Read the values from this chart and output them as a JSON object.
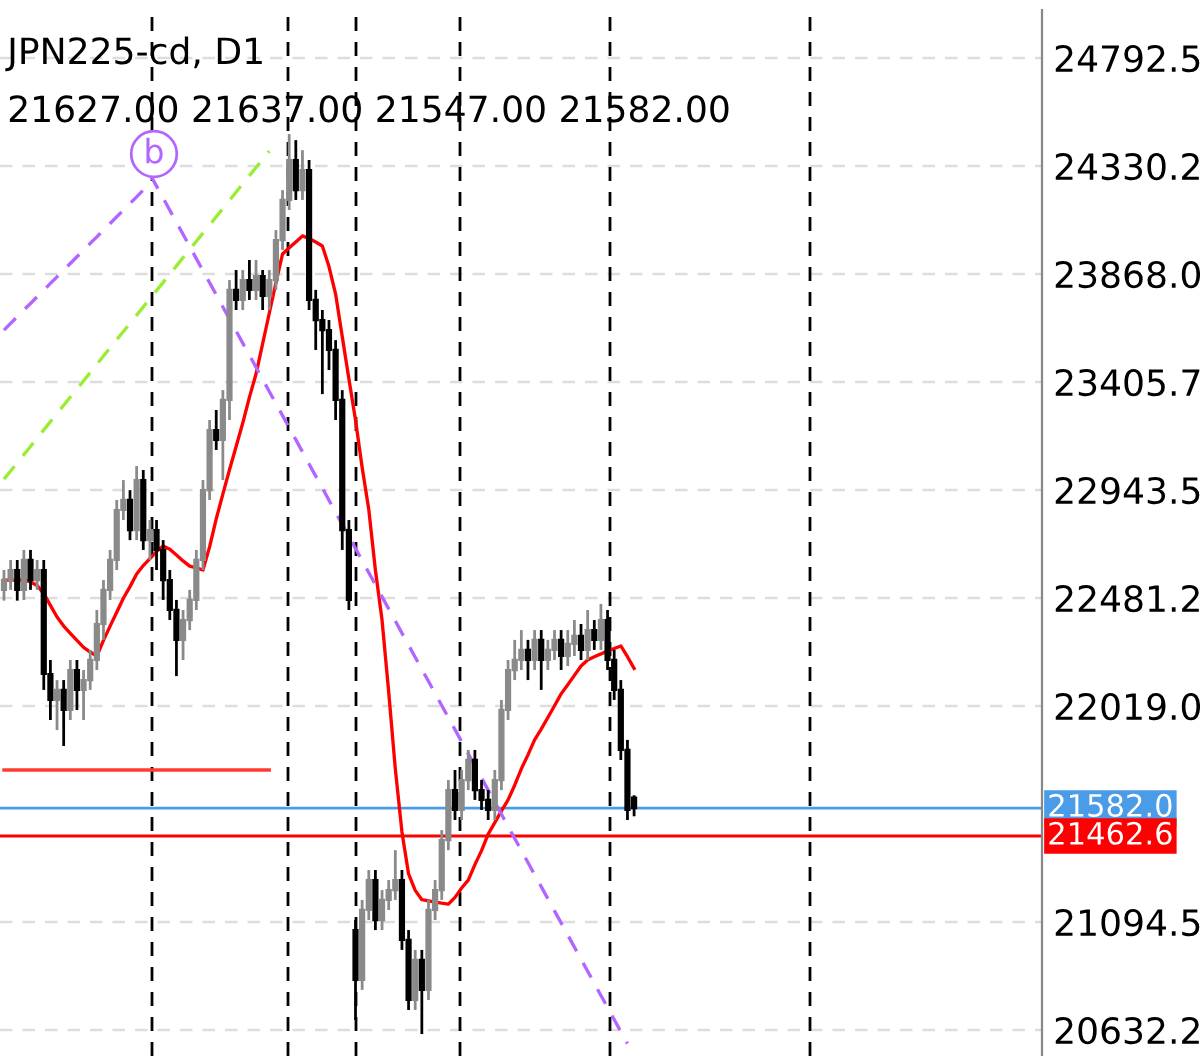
{
  "chart_data": {
    "type": "candlestick",
    "title": "JPN225-cd, D1",
    "subtitle": "21627.00 21637.00 21547.00 21582.00",
    "categories": [
      null,
      null,
      null,
      null,
      null,
      null,
      null,
      null,
      null,
      null,
      null,
      null,
      null,
      null,
      null,
      null,
      null,
      null,
      null,
      null,
      null,
      null,
      null,
      null,
      null,
      null,
      null,
      null,
      null,
      null,
      null,
      null,
      null,
      null,
      null,
      null,
      null,
      null,
      null,
      null,
      null,
      null,
      null,
      null,
      null,
      null,
      null,
      null,
      null,
      null,
      null,
      null,
      null,
      null,
      null,
      null,
      null,
      null,
      null,
      null,
      null,
      null,
      null,
      null,
      null,
      null,
      null,
      null,
      null,
      null,
      null,
      null,
      null,
      null,
      null,
      null,
      null,
      null,
      null,
      null,
      null,
      null,
      null,
      null,
      null,
      null,
      null,
      null,
      null,
      null,
      null,
      null,
      null,
      null,
      null,
      null,
      null,
      null,
      null,
      null,
      null,
      null,
      null,
      null,
      null,
      null,
      null,
      null,
      null,
      null,
      null,
      null,
      null,
      null,
      null,
      null,
      null,
      null,
      null,
      null,
      null,
      null,
      null,
      null,
      null,
      null,
      null,
      null,
      null,
      null,
      null,
      null,
      null,
      null,
      null,
      null,
      null,
      null,
      null,
      null,
      null,
      null,
      null,
      null,
      null,
      null,
      null,
      null,
      null,
      null,
      null,
      null,
      null,
      null,
      null,
      null,
      null
    ],
    "ohlc": [
      [
        22516,
        22601,
        22470,
        22558
      ],
      [
        22558,
        22644,
        22516,
        22601
      ],
      [
        22601,
        22644,
        22470,
        22516
      ],
      [
        22516,
        22687,
        22473,
        22644
      ],
      [
        22644,
        22687,
        22516,
        22558
      ],
      [
        22558,
        22644,
        22516,
        22601
      ],
      [
        22601,
        22644,
        22088,
        22156
      ],
      [
        22156,
        22216,
        21959,
        22045
      ],
      [
        22045,
        22130,
        21916,
        22088
      ],
      [
        22088,
        22130,
        21848,
        22002
      ],
      [
        22002,
        22216,
        21959,
        22173
      ],
      [
        22173,
        22216,
        22002,
        22088
      ],
      [
        22088,
        22173,
        21959,
        22130
      ],
      [
        22130,
        22259,
        22088,
        22216
      ],
      [
        22216,
        22430,
        22173,
        22370
      ],
      [
        22370,
        22558,
        22302,
        22516
      ],
      [
        22516,
        22687,
        22473,
        22644
      ],
      [
        22644,
        22901,
        22601,
        22858
      ],
      [
        22858,
        22986,
        22815,
        22901
      ],
      [
        22901,
        22943,
        22729,
        22772
      ],
      [
        22772,
        23046,
        22729,
        22986
      ],
      [
        22986,
        23029,
        22687,
        22729
      ],
      [
        22729,
        22815,
        22644,
        22772
      ],
      [
        22772,
        22815,
        22601,
        22687
      ],
      [
        22687,
        22729,
        22473,
        22558
      ],
      [
        22558,
        22601,
        22387,
        22430
      ],
      [
        22430,
        22473,
        22147,
        22302
      ],
      [
        22302,
        22430,
        22216,
        22387
      ],
      [
        22387,
        22516,
        22344,
        22473
      ],
      [
        22473,
        22687,
        22430,
        22644
      ],
      [
        22644,
        22986,
        22601,
        22943
      ],
      [
        22943,
        23243,
        22901,
        23200
      ],
      [
        23200,
        23286,
        23115,
        23158
      ],
      [
        23158,
        23371,
        22986,
        23329
      ],
      [
        23329,
        23842,
        23243,
        23800
      ],
      [
        23800,
        23885,
        23714,
        23757
      ],
      [
        23757,
        23885,
        23714,
        23842
      ],
      [
        23842,
        23928,
        23757,
        23800
      ],
      [
        23800,
        23928,
        23757,
        23859
      ],
      [
        23859,
        23885,
        23714,
        23774
      ],
      [
        23774,
        23885,
        23714,
        23842
      ],
      [
        23842,
        24056,
        23800,
        24013
      ],
      [
        24013,
        24227,
        23971,
        24185
      ],
      [
        24185,
        24467,
        24142,
        24356
      ],
      [
        24356,
        24441,
        24185,
        24227
      ],
      [
        24227,
        24398,
        24185,
        24313
      ],
      [
        24313,
        24356,
        23714,
        23757
      ],
      [
        23757,
        23800,
        23543,
        23671
      ],
      [
        23671,
        23714,
        23354,
        23628
      ],
      [
        23628,
        23671,
        23457,
        23543
      ],
      [
        23543,
        23585,
        23243,
        23329
      ],
      [
        23329,
        23371,
        22687,
        22772
      ],
      [
        22772,
        22815,
        22430,
        22473
      ],
      [
        21060,
        21103,
        20675,
        20847
      ],
      [
        20847,
        21189,
        20804,
        21146
      ],
      [
        21146,
        21317,
        21103,
        21274
      ],
      [
        21274,
        21317,
        21060,
        21103
      ],
      [
        21103,
        21231,
        21060,
        21189
      ],
      [
        21189,
        21274,
        21146,
        21231
      ],
      [
        21231,
        21402,
        21189,
        21274
      ],
      [
        21274,
        21317,
        20975,
        21018
      ],
      [
        21018,
        21060,
        20718,
        20761
      ],
      [
        20761,
        20975,
        20718,
        20932
      ],
      [
        20932,
        20975,
        20615,
        20804
      ],
      [
        20804,
        21189,
        20761,
        21146
      ],
      [
        21146,
        21274,
        21103,
        21231
      ],
      [
        21231,
        21488,
        21189,
        21445
      ],
      [
        21445,
        21702,
        21402,
        21659
      ],
      [
        21659,
        21745,
        21531,
        21574
      ],
      [
        21574,
        21745,
        21531,
        21702
      ],
      [
        21702,
        21831,
        21659,
        21788
      ],
      [
        21788,
        21831,
        21617,
        21659
      ],
      [
        21659,
        21702,
        21574,
        21617
      ],
      [
        21617,
        21659,
        21531,
        21574
      ],
      [
        21574,
        21745,
        21531,
        21702
      ],
      [
        21702,
        22045,
        21659,
        22002
      ],
      [
        22002,
        22216,
        21959,
        22173
      ],
      [
        22173,
        22302,
        22130,
        22216
      ],
      [
        22216,
        22344,
        22173,
        22259
      ],
      [
        22259,
        22302,
        22130,
        22216
      ],
      [
        22216,
        22344,
        22173,
        22302
      ],
      [
        22302,
        22344,
        22088,
        22216
      ],
      [
        22216,
        22302,
        22173,
        22259
      ],
      [
        22259,
        22344,
        22216,
        22302
      ],
      [
        22302,
        22344,
        22173,
        22233
      ],
      [
        22233,
        22344,
        22190,
        22285
      ],
      [
        22285,
        22387,
        22233,
        22319
      ],
      [
        22319,
        22370,
        22216,
        22259
      ],
      [
        22259,
        22430,
        22216,
        22344
      ],
      [
        22344,
        22387,
        22259,
        22302
      ],
      [
        22302,
        22456,
        22259,
        22387
      ],
      [
        22387,
        22430,
        22173,
        22216
      ],
      [
        22216,
        22259,
        22045,
        22088
      ],
      [
        22088,
        22130,
        21788,
        21831
      ],
      [
        21831,
        21874,
        21531,
        21574
      ],
      [
        21627,
        21637,
        21547,
        21582
      ],
      null,
      null,
      null,
      null,
      null,
      null,
      null,
      null,
      null,
      null,
      null,
      null,
      null,
      null,
      null,
      null,
      null,
      null,
      null,
      null,
      null,
      null,
      null,
      null,
      null,
      null,
      null,
      null,
      null,
      null,
      null,
      null,
      null,
      null,
      null,
      null,
      null,
      null,
      null,
      null,
      null,
      null,
      null,
      null,
      null,
      null,
      null,
      null,
      null,
      null,
      null,
      null,
      null,
      null,
      null,
      null,
      null,
      null,
      null,
      null,
      null
    ],
    "series": [
      {
        "type": "line",
        "color": "#ff0000",
        "line_style": "solid",
        "values": [
          22558,
          22558,
          22558,
          22558,
          22550,
          22535,
          22500,
          22450,
          22400,
          22361,
          22330,
          22300,
          22270,
          22250,
          22233,
          22300,
          22361,
          22420,
          22480,
          22530,
          22584,
          22620,
          22650,
          22680,
          22704,
          22690,
          22665,
          22640,
          22618,
          22610,
          22601,
          22700,
          22820,
          22926,
          23030,
          23130,
          23230,
          23340,
          23440,
          23570,
          23700,
          23830,
          23954,
          23980,
          24005,
          24031,
          24020,
          24005,
          23988,
          23900,
          23782,
          23600,
          23420,
          23243,
          23040,
          22860,
          22600,
          22387,
          22080,
          21750,
          21480,
          21300,
          21230,
          21190,
          21185,
          21180,
          21175,
          21171,
          21200,
          21240,
          21274,
          21340,
          21400,
          21471,
          21520,
          21570,
          21617,
          21680,
          21750,
          21810,
          21874,
          21920,
          21970,
          22020,
          22071,
          22110,
          22150,
          22190,
          22216,
          22230,
          22242,
          22255,
          22265,
          22276,
          22230,
          22180,
          null,
          null,
          null,
          null,
          null,
          null,
          null,
          null,
          null,
          null,
          null,
          null,
          null,
          null,
          null,
          null,
          null,
          null,
          null,
          null,
          null,
          null,
          null,
          null,
          null,
          null,
          null,
          null,
          null,
          null,
          null,
          null,
          null,
          null,
          null,
          null,
          null,
          null,
          null,
          null,
          null,
          null,
          null,
          null,
          null,
          null,
          null,
          null,
          null,
          null,
          null,
          null,
          null,
          null,
          null,
          null,
          null,
          null,
          null,
          null,
          null
        ]
      },
      {
        "type": "line",
        "color": "#ff3b30",
        "line_style": "solid",
        "values": [
          21745,
          21745,
          21745,
          21745,
          21745,
          21745,
          21745,
          21745,
          21745,
          21745,
          21745,
          21745,
          21745,
          21745,
          21745,
          21745,
          21745,
          21745,
          21745,
          21745,
          21745,
          21745,
          21745,
          21745,
          21745,
          21745,
          21745,
          21745,
          21745,
          21745,
          21745,
          21745,
          21745,
          21745,
          21745,
          21745,
          21745,
          21745,
          21745,
          21745,
          21745,
          null,
          null,
          null,
          null,
          null,
          null,
          null,
          null,
          null,
          null,
          null,
          null,
          null,
          null,
          null,
          null,
          null,
          null,
          null,
          null,
          null,
          null,
          null,
          null,
          null,
          null,
          null,
          null,
          null,
          null,
          null,
          null,
          null,
          null,
          null,
          null,
          null,
          null,
          null,
          null,
          null,
          null,
          null,
          null,
          null,
          null,
          null,
          null,
          null,
          null,
          null,
          null,
          null,
          null,
          null,
          null,
          null,
          null,
          null,
          null,
          null,
          null,
          null,
          null,
          null,
          null,
          null,
          null,
          null,
          null,
          null,
          null,
          null,
          null,
          null,
          null,
          null,
          null,
          null,
          null,
          null,
          null,
          null,
          null,
          null,
          null,
          null,
          null,
          null,
          null,
          null,
          null,
          null,
          null,
          null,
          null,
          null,
          null,
          null,
          null,
          null,
          null,
          null,
          null,
          null,
          null,
          null,
          null,
          null,
          null,
          null,
          null,
          null,
          null,
          null,
          null
        ]
      },
      {
        "type": "line",
        "color": "#b266ff",
        "line_style": "dashed",
        "values": [
          23628,
          23657,
          23685,
          23714,
          23742,
          23771,
          23799,
          23828,
          23856,
          23885,
          23913,
          23942,
          23970,
          23999,
          24027,
          24056,
          24084,
          24113,
          24141,
          24170,
          24198,
          24227,
          24255,
          null,
          null,
          null,
          null,
          null,
          null,
          null,
          null,
          null,
          null,
          null,
          null,
          null,
          null,
          null,
          null,
          null,
          null,
          null,
          null,
          null,
          null,
          null,
          null,
          null,
          null,
          null,
          null,
          null,
          null,
          null,
          null,
          null,
          null,
          null,
          null,
          null,
          null,
          null,
          null,
          null,
          null,
          null,
          null,
          null,
          null,
          null,
          null,
          null,
          null,
          null,
          null,
          null,
          null,
          null,
          null,
          null,
          null,
          null,
          null,
          null,
          null,
          null,
          null,
          null,
          null,
          null,
          null,
          null,
          null,
          null,
          null,
          null,
          null,
          null,
          null,
          null,
          null,
          null,
          null,
          null,
          null,
          null,
          null,
          null,
          null,
          null,
          null,
          null,
          null,
          null,
          null,
          null,
          null,
          null,
          null,
          null,
          null,
          null,
          null,
          null,
          null,
          null,
          null,
          null,
          null,
          null,
          null,
          null,
          null,
          null,
          null,
          null,
          null,
          null,
          null,
          null,
          null,
          null,
          null,
          null,
          null,
          null,
          null,
          null,
          null,
          null,
          null,
          null,
          null,
          null,
          null,
          null,
          null
        ]
      },
      {
        "type": "line",
        "color": "#b266ff",
        "line_style": "dashed",
        "values": [
          null,
          null,
          null,
          null,
          null,
          null,
          null,
          null,
          null,
          null,
          null,
          null,
          null,
          null,
          null,
          null,
          null,
          null,
          null,
          null,
          null,
          null,
          24296,
          24244,
          24193,
          24141,
          24089,
          24038,
          23986,
          23934,
          23882,
          23831,
          23779,
          23727,
          23676,
          23624,
          23572,
          23521,
          23469,
          23417,
          23365,
          23314,
          23262,
          23210,
          23159,
          23107,
          23055,
          23003,
          22952,
          22900,
          22848,
          22797,
          22745,
          22693,
          22642,
          22590,
          22538,
          22486,
          22435,
          22383,
          22331,
          22280,
          22228,
          22176,
          22125,
          22073,
          22021,
          21969,
          21918,
          21866,
          21814,
          21763,
          21711,
          21659,
          21608,
          21556,
          21504,
          21452,
          21401,
          21349,
          21297,
          21246,
          21194,
          21142,
          21091,
          21039,
          20987,
          20935,
          20884,
          20832,
          20780,
          20729,
          20677,
          20625,
          20574,
          null,
          null,
          null,
          null,
          null,
          null,
          null,
          null,
          null,
          null,
          null,
          null,
          null,
          null,
          null,
          null,
          null,
          null,
          null,
          null,
          null,
          null,
          null,
          null,
          null,
          null,
          null,
          null,
          null,
          null,
          null,
          null,
          null,
          null,
          null,
          null,
          null,
          null,
          null,
          null,
          null,
          null,
          null,
          null,
          null,
          null,
          null,
          null,
          null,
          null,
          null,
          null,
          null,
          null,
          null,
          null,
          null,
          null,
          null,
          null,
          null,
          null
        ]
      },
      {
        "type": "line",
        "color": "#99ee33",
        "line_style": "dashed",
        "values": [
          22990,
          23025,
          23060,
          23095,
          23130,
          23166,
          23201,
          23236,
          23271,
          23306,
          23341,
          23376,
          23411,
          23446,
          23481,
          23517,
          23552,
          23587,
          23622,
          23657,
          23692,
          23727,
          23762,
          23797,
          23832,
          23868,
          23903,
          23938,
          23973,
          24008,
          24043,
          24078,
          24113,
          24148,
          24183,
          24219,
          24254,
          24289,
          24324,
          24359,
          24394,
          null,
          null,
          null,
          null,
          null,
          null,
          null,
          null,
          null,
          null,
          null,
          null,
          null,
          null,
          null,
          null,
          null,
          null,
          null,
          null,
          null,
          null,
          null,
          null,
          null,
          null,
          null,
          null,
          null,
          null,
          null,
          null,
          null,
          null,
          null,
          null,
          null,
          null,
          null,
          null,
          null,
          null,
          null,
          null,
          null,
          null,
          null,
          null,
          null,
          null,
          null,
          null,
          null,
          null,
          null,
          null,
          null,
          null,
          null,
          null,
          null,
          null,
          null,
          null,
          null,
          null,
          null,
          null,
          null,
          null,
          null,
          null,
          null,
          null,
          null,
          null,
          null,
          null,
          null,
          null,
          null,
          null,
          null,
          null,
          null,
          null,
          null,
          null,
          null,
          null,
          null,
          null,
          null,
          null,
          null,
          null,
          null,
          null,
          null,
          null,
          null,
          null,
          null,
          null,
          null,
          null,
          null,
          null,
          null,
          null,
          null,
          null,
          null,
          null,
          null,
          null
        ]
      }
    ],
    "ylim": [
      20521,
      24998
    ],
    "yticks": [
      {
        "value": 24792.5,
        "label": "24792.5"
      },
      {
        "value": 24330.25,
        "label": "24330.2"
      },
      {
        "value": 23868,
        "label": "23868.0"
      },
      {
        "value": 23405.75,
        "label": "23405.7"
      },
      {
        "value": 22943.5,
        "label": "22943.5"
      },
      {
        "value": 22481.25,
        "label": "22481.2"
      },
      {
        "value": 22019,
        "label": "22019.0"
      },
      {
        "value": 21094.5,
        "label": "21094.5"
      },
      {
        "value": 20632.25,
        "label": "20632.2"
      }
    ],
    "tick_labels": "y",
    "grid": "y",
    "ref_lines": [
      {
        "axis": "y",
        "value": 21582,
        "label": "21582.0",
        "color": "#4a9be8",
        "line_style": "solid"
      },
      {
        "axis": "y",
        "value": 21462.6,
        "label": "21462.6",
        "color": "#ff0000",
        "line_style": "solid"
      }
    ],
    "annotations": [
      "b"
    ]
  }
}
